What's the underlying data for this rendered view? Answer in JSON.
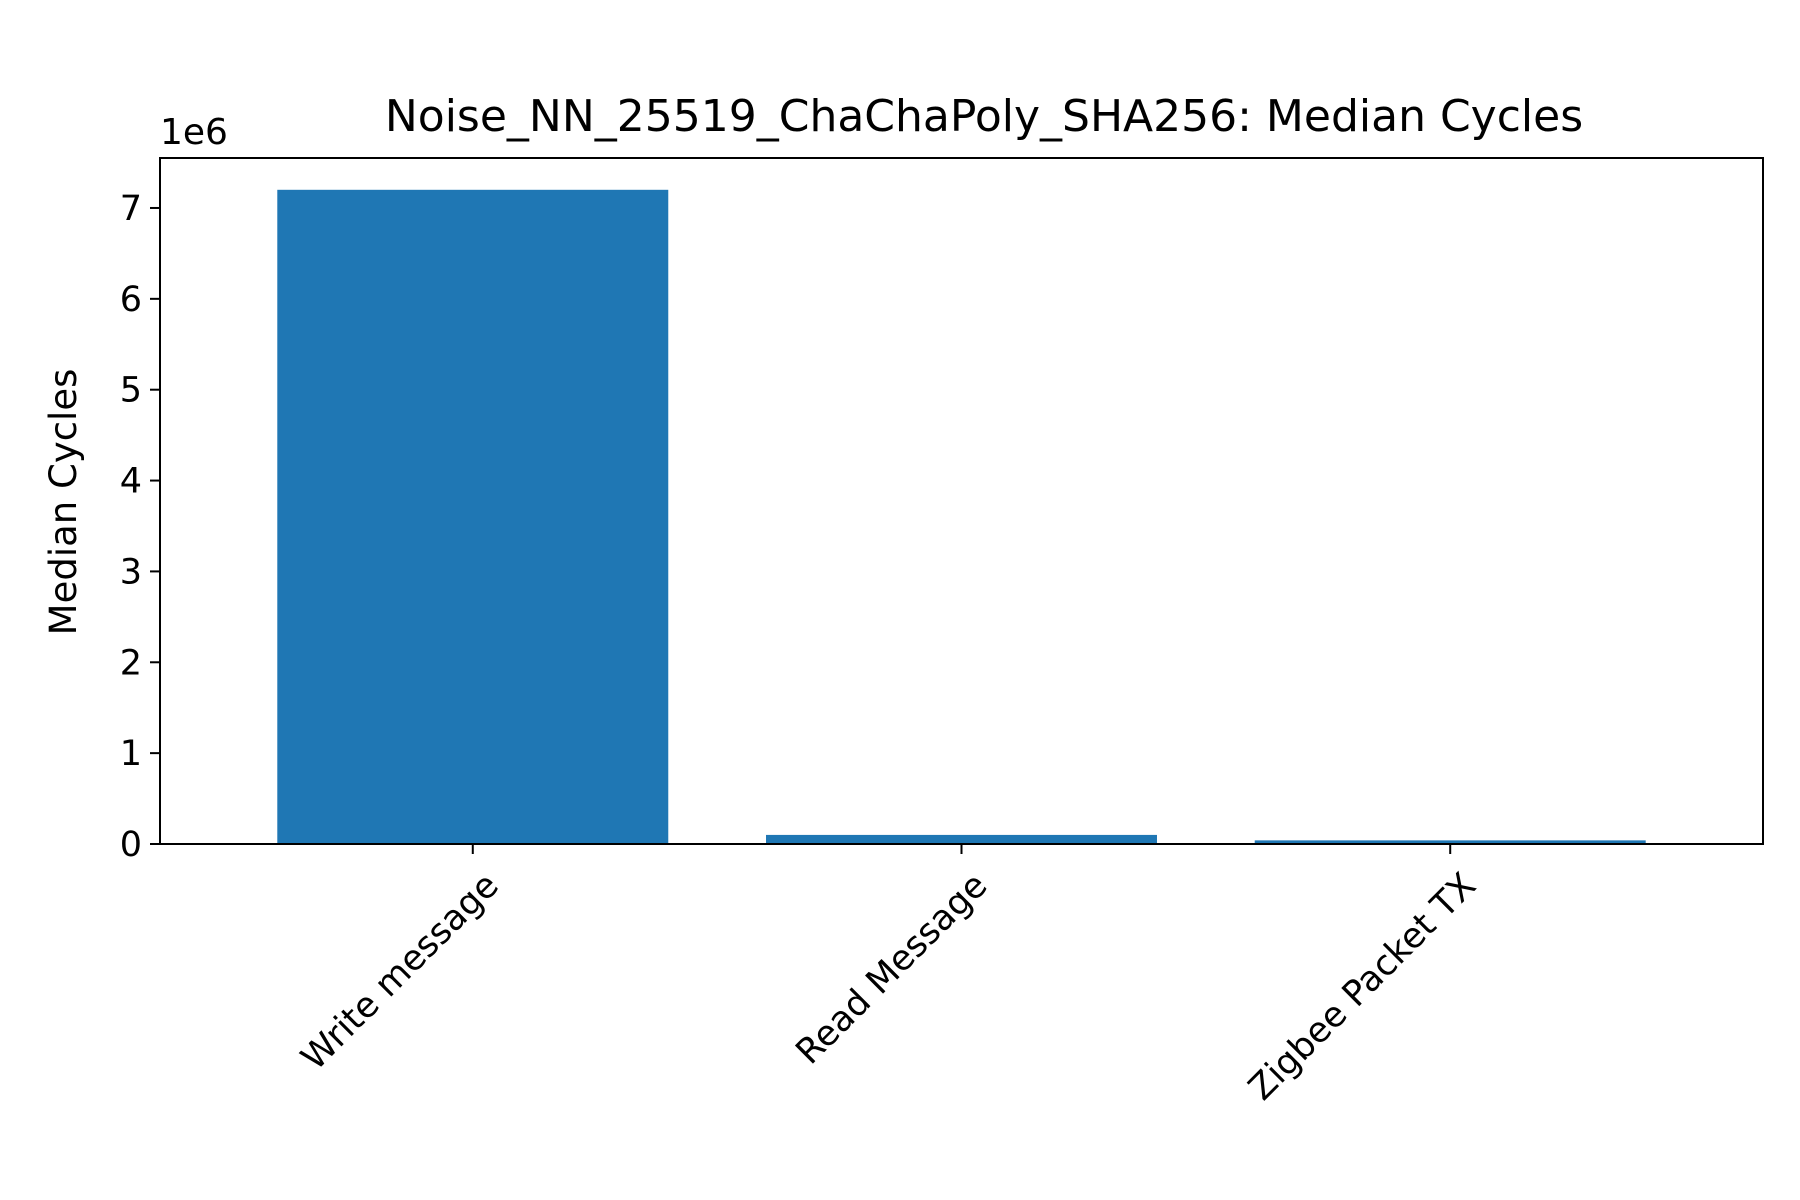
{
  "chart_data": {
    "type": "bar",
    "title": "Noise_NN_25519_ChaChaPoly_SHA256: Median Cycles",
    "xlabel": "",
    "ylabel": "Median Cycles",
    "y_offset_label": "1e6",
    "y_scale": 1000000,
    "categories": [
      "Write message",
      "Read Message",
      "Zigbee Packet TX"
    ],
    "values": [
      7200000,
      100000,
      40000
    ],
    "ylim": [
      0,
      7550000
    ],
    "yticks": [
      0,
      1,
      2,
      3,
      4,
      5,
      6,
      7
    ],
    "grid": false,
    "legend": "none",
    "bar_color": "#1f77b4"
  }
}
